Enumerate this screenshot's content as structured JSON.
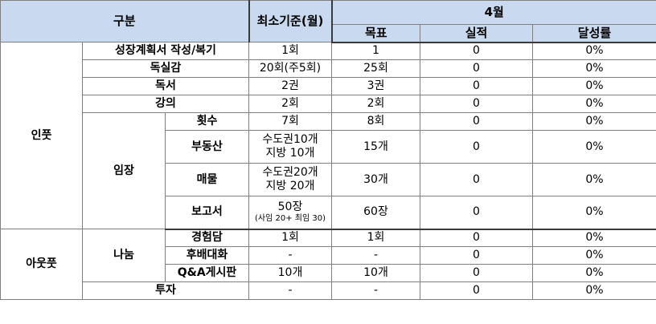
{
  "header": {
    "category": "구분",
    "min_standard": "최소기준(월)",
    "month": "4월",
    "target": "목표",
    "actual": "실적",
    "achievement": "달성률"
  },
  "groups": {
    "input": "인풋",
    "output": "아웃풋",
    "imjang": "임장",
    "sharing": "나눔"
  },
  "rows": [
    {
      "item": "성장계획서 작성/복기",
      "min": "1회",
      "target": "1",
      "actual": "0",
      "rate": "0%"
    },
    {
      "item": "독실감",
      "min": "20회(주5회)",
      "target": "25회",
      "actual": "0",
      "rate": "0%"
    },
    {
      "item": "독서",
      "min": "2권",
      "target": "3권",
      "actual": "0",
      "rate": "0%"
    },
    {
      "item": "강의",
      "min": "2회",
      "target": "2회",
      "actual": "0",
      "rate": "0%"
    },
    {
      "item": "횟수",
      "min": "7회",
      "target": "8회",
      "actual": "0",
      "rate": "0%"
    },
    {
      "item": "부동산",
      "min_line1": "수도권10개",
      "min_line2": "지방 10개",
      "target": "15개",
      "actual": "0",
      "rate": "0%"
    },
    {
      "item": "매물",
      "min_line1": "수도권20개",
      "min_line2": "지방 20개",
      "target": "30개",
      "actual": "0",
      "rate": "0%"
    },
    {
      "item": "보고서",
      "min_line1": "50장",
      "min_line2": "(사임 20+ 최임 30)",
      "target": "60장",
      "actual": "0",
      "rate": "0%"
    },
    {
      "item": "경험담",
      "min": "1회",
      "target": "1회",
      "actual": "0",
      "rate": "0%"
    },
    {
      "item": "후배대화",
      "min": "-",
      "target": "-",
      "actual": "0",
      "rate": "0%"
    },
    {
      "item": "Q&A게시판",
      "min": "10개",
      "target": "10개",
      "actual": "0",
      "rate": "0%"
    },
    {
      "item": "투자",
      "min": "-",
      "target": "-",
      "actual": "0",
      "rate": "0%"
    }
  ]
}
